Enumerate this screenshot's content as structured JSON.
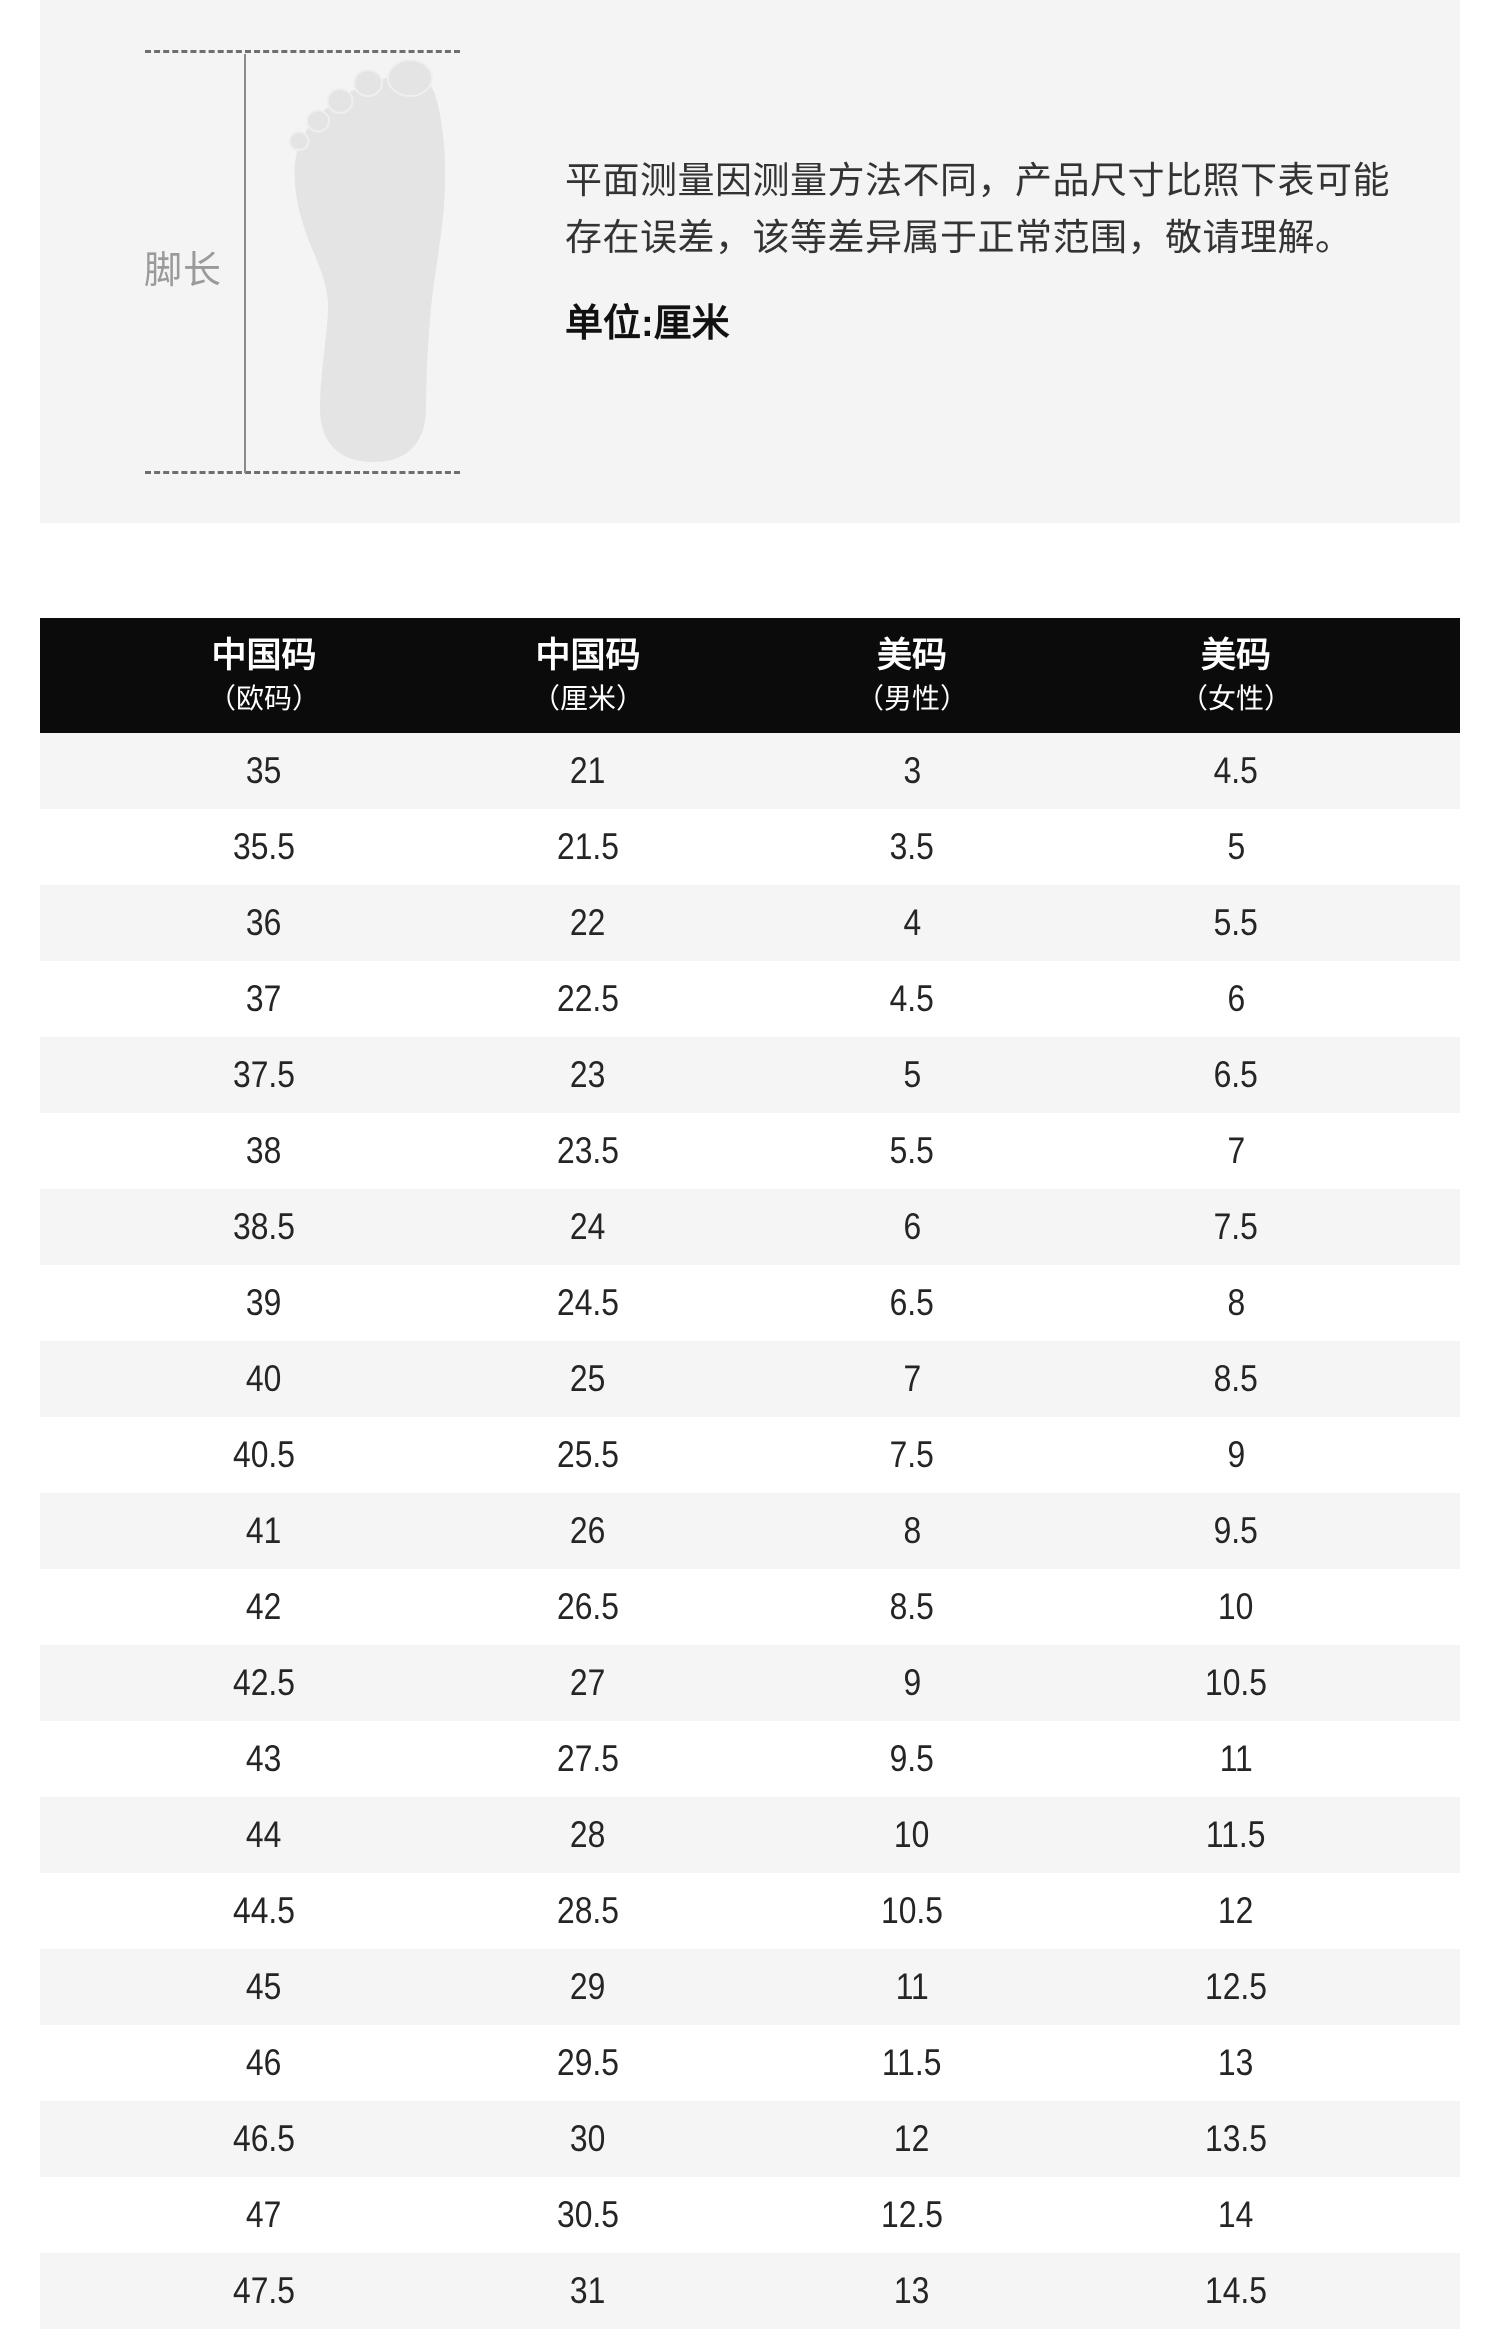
{
  "hero": {
    "foot_label": "脚长",
    "note_lines": [
      "平面测量因测量方法不同，产品尺寸比照下表可能",
      "存在误差，该等差异属于正常范围，敬请理解。"
    ],
    "unit_label": "单位:厘米"
  },
  "table": {
    "columns": [
      {
        "title": "中国码",
        "subtitle": "（欧码）"
      },
      {
        "title": "中国码",
        "subtitle": "（厘米）"
      },
      {
        "title": "美码",
        "subtitle": "（男性）"
      },
      {
        "title": "美码",
        "subtitle": "（女性）"
      }
    ],
    "rows": [
      [
        "35",
        "21",
        "3",
        "4.5"
      ],
      [
        "35.5",
        "21.5",
        "3.5",
        "5"
      ],
      [
        "36",
        "22",
        "4",
        "5.5"
      ],
      [
        "37",
        "22.5",
        "4.5",
        "6"
      ],
      [
        "37.5",
        "23",
        "5",
        "6.5"
      ],
      [
        "38",
        "23.5",
        "5.5",
        "7"
      ],
      [
        "38.5",
        "24",
        "6",
        "7.5"
      ],
      [
        "39",
        "24.5",
        "6.5",
        "8"
      ],
      [
        "40",
        "25",
        "7",
        "8.5"
      ],
      [
        "40.5",
        "25.5",
        "7.5",
        "9"
      ],
      [
        "41",
        "26",
        "8",
        "9.5"
      ],
      [
        "42",
        "26.5",
        "8.5",
        "10"
      ],
      [
        "42.5",
        "27",
        "9",
        "10.5"
      ],
      [
        "43",
        "27.5",
        "9.5",
        "11"
      ],
      [
        "44",
        "28",
        "10",
        "11.5"
      ],
      [
        "44.5",
        "28.5",
        "10.5",
        "12"
      ],
      [
        "45",
        "29",
        "11",
        "12.5"
      ],
      [
        "46",
        "29.5",
        "11.5",
        "13"
      ],
      [
        "46.5",
        "30",
        "12",
        "13.5"
      ],
      [
        "47",
        "30.5",
        "12.5",
        "14"
      ],
      [
        "47.5",
        "31",
        "13",
        "14.5"
      ]
    ]
  },
  "colors": {
    "panel_bg": "#f4f4f4",
    "header_bg": "#0b0b0b",
    "header_text": "#ffffff",
    "row_stripe": "#f5f5f5",
    "row_text": "#252525",
    "note_text": "#333333",
    "foot_fill": "#e4e4e4",
    "measure_line": "#6e6e6e",
    "foot_label_text": "#9a9a9a"
  }
}
